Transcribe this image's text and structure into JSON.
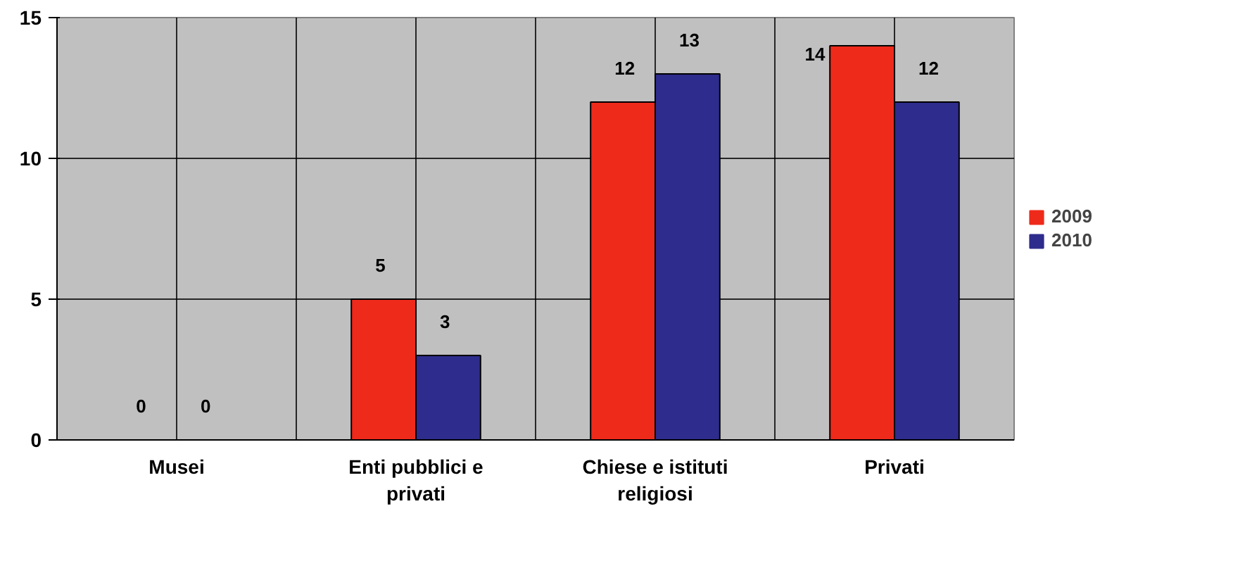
{
  "chart_data": {
    "type": "bar",
    "categories": [
      "Musei",
      "Enti pubblici e privati",
      "Chiese e istituti religiosi",
      "Privati"
    ],
    "series": [
      {
        "name": "2009",
        "color": "#ee2a1b",
        "values": [
          0,
          5,
          12,
          14
        ]
      },
      {
        "name": "2010",
        "color": "#2e2c8c",
        "values": [
          0,
          3,
          13,
          12
        ]
      }
    ],
    "ylim": [
      0,
      15
    ],
    "yticks": [
      0,
      5,
      10,
      15
    ],
    "grid": true,
    "legend": "right",
    "data_labels": true
  }
}
